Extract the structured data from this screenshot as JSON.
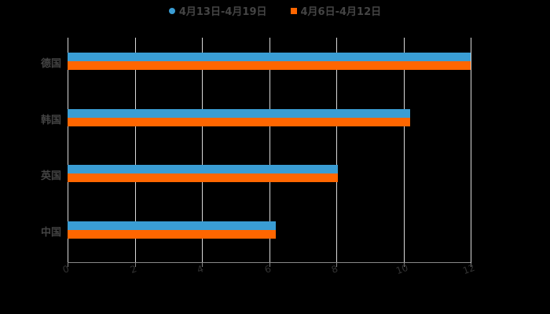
{
  "chart_data": {
    "type": "bar",
    "orientation": "horizontal",
    "categories": [
      "德国",
      "韩国",
      "英国",
      "中国"
    ],
    "series": [
      {
        "name": "4月13日-4月19日",
        "color": "#3a9dd4",
        "values": [
          12,
          10.2,
          8.05,
          6.2
        ]
      },
      {
        "name": "4月6日-4月12日",
        "color": "#ff6600",
        "values": [
          12,
          10.2,
          8.05,
          6.2
        ]
      }
    ],
    "title": "",
    "xlabel": "",
    "ylabel": "",
    "xlim": [
      0,
      12
    ],
    "xticks": [
      "0",
      "2",
      "4",
      "6",
      "8",
      "10",
      "12"
    ],
    "grid": true,
    "legend_position": "top"
  },
  "legend": {
    "item0": "4月13日-4月19日",
    "item1": "4月6日-4月12日"
  }
}
